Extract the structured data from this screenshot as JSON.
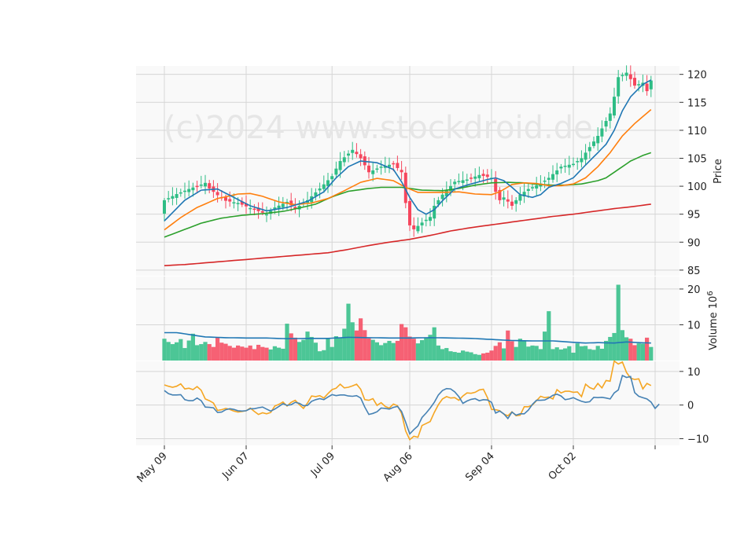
{
  "chart_data": {
    "type": "candlestick",
    "watermark": "(c)2024 www.stockdroid.de",
    "x_ticks": [
      "May 09",
      "Jun 07",
      "Jul 09",
      "Aug 06",
      "Sep 04",
      "Oct 02"
    ],
    "x_tick_index": [
      0,
      20,
      41,
      60,
      80,
      100
    ],
    "n_days": 120,
    "colors": {
      "up": "#2ebd85",
      "down": "#f6465d",
      "ma_fast": "#1f77b4",
      "ma_mid": "#ff7f0e",
      "ma_slow": "#2ca02c",
      "ma_long": "#d62728",
      "volume_avg": "#1f77b4",
      "osc_a": "#f5a623",
      "osc_b": "#4682b4"
    },
    "price_panel": {
      "ylabel": "Price",
      "ylim": [
        84,
        121.5
      ],
      "yticks": [
        85,
        90,
        95,
        100,
        105,
        110,
        115,
        120
      ],
      "close_anchors": [
        [
          0,
          97.5
        ],
        [
          3,
          98.6
        ],
        [
          6,
          99.5
        ],
        [
          9,
          100.3
        ],
        [
          10,
          100.6
        ],
        [
          11,
          99.6
        ],
        [
          13,
          98.4
        ],
        [
          15,
          97.4
        ],
        [
          18,
          97.0
        ],
        [
          20,
          96.4
        ],
        [
          22,
          95.8
        ],
        [
          25,
          95.0
        ],
        [
          27,
          96.2
        ],
        [
          30,
          97.2
        ],
        [
          32,
          96.0
        ],
        [
          35,
          97.5
        ],
        [
          38,
          99.6
        ],
        [
          41,
          101.8
        ],
        [
          43,
          104.5
        ],
        [
          46,
          106.5
        ],
        [
          48,
          105.0
        ],
        [
          50,
          102.5
        ],
        [
          53,
          103.5
        ],
        [
          56,
          104.0
        ],
        [
          58,
          102.5
        ],
        [
          59,
          97.0
        ],
        [
          60,
          93.0
        ],
        [
          61,
          92.3
        ],
        [
          63,
          93.5
        ],
        [
          65,
          94.5
        ],
        [
          66,
          96.5
        ],
        [
          68,
          98.5
        ],
        [
          71,
          100.8
        ],
        [
          74,
          101.2
        ],
        [
          77,
          102.0
        ],
        [
          80,
          101.5
        ],
        [
          81,
          99.0
        ],
        [
          82,
          97.5
        ],
        [
          83,
          98.0
        ],
        [
          85,
          96.5
        ],
        [
          87,
          98.5
        ],
        [
          89,
          99.5
        ],
        [
          92,
          100.5
        ],
        [
          94,
          101.5
        ],
        [
          97,
          103.5
        ],
        [
          100,
          104.0
        ],
        [
          102,
          105.0
        ],
        [
          104,
          107.0
        ],
        [
          106,
          109.0
        ],
        [
          109,
          113.0
        ],
        [
          110,
          116.0
        ],
        [
          111,
          119.5
        ],
        [
          113,
          120.3
        ],
        [
          115,
          118.0
        ],
        [
          117,
          118.5
        ],
        [
          118,
          117.0
        ],
        [
          119,
          118.9
        ]
      ],
      "ma_fast_anchors": [
        [
          0,
          93.8
        ],
        [
          5,
          97.5
        ],
        [
          9,
          99.3
        ],
        [
          13,
          99.5
        ],
        [
          17,
          98.0
        ],
        [
          21,
          96.5
        ],
        [
          25,
          95.6
        ],
        [
          30,
          96.2
        ],
        [
          35,
          97.3
        ],
        [
          39,
          99.0
        ],
        [
          42,
          101.5
        ],
        [
          45,
          103.5
        ],
        [
          48,
          104.5
        ],
        [
          52,
          104.2
        ],
        [
          56,
          103.0
        ],
        [
          58,
          100.8
        ],
        [
          60,
          98.0
        ],
        [
          62,
          95.8
        ],
        [
          64,
          95.0
        ],
        [
          66,
          95.8
        ],
        [
          68,
          97.4
        ],
        [
          71,
          99.5
        ],
        [
          74,
          100.2
        ],
        [
          77,
          100.8
        ],
        [
          79,
          101.2
        ],
        [
          81,
          101.5
        ],
        [
          83,
          101.0
        ],
        [
          85,
          99.8
        ],
        [
          87,
          98.5
        ],
        [
          90,
          98.0
        ],
        [
          92,
          98.5
        ],
        [
          94,
          99.8
        ],
        [
          97,
          100.5
        ],
        [
          100,
          101.5
        ],
        [
          103,
          103.8
        ],
        [
          106,
          106.0
        ],
        [
          108,
          107.5
        ],
        [
          110,
          110.0
        ],
        [
          112,
          113.5
        ],
        [
          114,
          116.0
        ],
        [
          117,
          118.2
        ],
        [
          119,
          119.0
        ]
      ],
      "ma_mid_anchors": [
        [
          0,
          92.2
        ],
        [
          4,
          94.4
        ],
        [
          8,
          96.2
        ],
        [
          13,
          97.8
        ],
        [
          18,
          98.6
        ],
        [
          21,
          98.7
        ],
        [
          24,
          98.2
        ],
        [
          28,
          97.2
        ],
        [
          32,
          96.7
        ],
        [
          36,
          97.0
        ],
        [
          40,
          97.8
        ],
        [
          44,
          99.2
        ],
        [
          48,
          100.7
        ],
        [
          52,
          101.4
        ],
        [
          56,
          101.0
        ],
        [
          59,
          99.8
        ],
        [
          62,
          98.9
        ],
        [
          66,
          98.9
        ],
        [
          68,
          98.9
        ],
        [
          72,
          99.0
        ],
        [
          76,
          98.6
        ],
        [
          80,
          98.5
        ],
        [
          82,
          99.0
        ],
        [
          85,
          100.3
        ],
        [
          88,
          100.6
        ],
        [
          91,
          100.5
        ],
        [
          94,
          100.1
        ],
        [
          97,
          100.1
        ],
        [
          100,
          100.4
        ],
        [
          103,
          101.5
        ],
        [
          106,
          103.5
        ],
        [
          109,
          106.0
        ],
        [
          112,
          109.0
        ],
        [
          115,
          111.2
        ],
        [
          119,
          113.7
        ]
      ],
      "ma_slow_anchors": [
        [
          0,
          90.9
        ],
        [
          4,
          92.0
        ],
        [
          9,
          93.4
        ],
        [
          14,
          94.3
        ],
        [
          19,
          94.8
        ],
        [
          24,
          95.1
        ],
        [
          29,
          95.5
        ],
        [
          33,
          96.1
        ],
        [
          37,
          96.8
        ],
        [
          41,
          98.1
        ],
        [
          45,
          99.1
        ],
        [
          50,
          99.6
        ],
        [
          53,
          99.8
        ],
        [
          58,
          99.8
        ],
        [
          63,
          99.3
        ],
        [
          68,
          99.2
        ],
        [
          72,
          99.6
        ],
        [
          76,
          100.2
        ],
        [
          80,
          100.6
        ],
        [
          84,
          100.7
        ],
        [
          88,
          100.6
        ],
        [
          92,
          100.3
        ],
        [
          95,
          100.2
        ],
        [
          98,
          100.2
        ],
        [
          102,
          100.4
        ],
        [
          106,
          101.0
        ],
        [
          108,
          101.5
        ],
        [
          111,
          103.0
        ],
        [
          114,
          104.5
        ],
        [
          117,
          105.5
        ],
        [
          119,
          106.0
        ]
      ],
      "ma_long_anchors": [
        [
          0,
          85.8
        ],
        [
          5,
          86.0
        ],
        [
          10,
          86.3
        ],
        [
          15,
          86.6
        ],
        [
          20,
          86.9
        ],
        [
          25,
          87.2
        ],
        [
          30,
          87.5
        ],
        [
          35,
          87.8
        ],
        [
          40,
          88.1
        ],
        [
          45,
          88.7
        ],
        [
          50,
          89.4
        ],
        [
          55,
          90.0
        ],
        [
          60,
          90.5
        ],
        [
          65,
          91.2
        ],
        [
          70,
          92.0
        ],
        [
          75,
          92.6
        ],
        [
          80,
          93.1
        ],
        [
          85,
          93.6
        ],
        [
          90,
          94.1
        ],
        [
          95,
          94.6
        ],
        [
          100,
          95.0
        ],
        [
          105,
          95.5
        ],
        [
          110,
          96.0
        ],
        [
          115,
          96.4
        ],
        [
          119,
          96.8
        ]
      ]
    },
    "volume_panel": {
      "ylabel": "Volume  10",
      "ylabel_exp": "6",
      "ylim": [
        0,
        23.5
      ],
      "yticks": [
        10,
        20
      ],
      "values": [
        6.1,
        5.2,
        4.6,
        5.1,
        6.0,
        3.5,
        5.6,
        7.5,
        4.3,
        4.6,
        5.2,
        4.6,
        3.8,
        6.4,
        5.0,
        4.7,
        4.1,
        3.6,
        4.2,
        3.9,
        3.6,
        4.2,
        3.2,
        4.4,
        3.8,
        3.6,
        3.1,
        4.0,
        3.6,
        3.3,
        10.3,
        7.6,
        6.4,
        5.2,
        5.8,
        8.1,
        6.6,
        5.0,
        2.6,
        2.9,
        6.1,
        3.8,
        6.8,
        6.4,
        8.9,
        15.9,
        10.7,
        8.4,
        11.8,
        8.5,
        6.2,
        5.8,
        5.1,
        4.3,
        4.9,
        5.5,
        4.9,
        5.5,
        10.2,
        9.3,
        6.7,
        6.1,
        4.8,
        5.7,
        6.5,
        7.2,
        9.3,
        4.2,
        3.2,
        3.5,
        2.6,
        2.4,
        2.2,
        2.8,
        2.5,
        2.3,
        1.8,
        1.6,
        2.0,
        2.2,
        2.8,
        4.1,
        5.1,
        3.4,
        8.4,
        5.4,
        3.8,
        6.1,
        5.5,
        3.9,
        4.2,
        4.1,
        3.2,
        8.1,
        13.8,
        3.2,
        3.7,
        3.1,
        3.4,
        4.0,
        2.2,
        4.8,
        4.0,
        4.1,
        3.2,
        3.0,
        4.1,
        3.3,
        5.5,
        6.6,
        7.7,
        21.2,
        8.5,
        6.5,
        6.1,
        4.3,
        4.8,
        4.7,
        6.4,
        3.8
      ]
    },
    "volume_avg_anchors": [
      [
        0,
        7.8
      ],
      [
        3,
        7.8
      ],
      [
        6,
        7.3
      ],
      [
        10,
        6.6
      ],
      [
        15,
        6.4
      ],
      [
        20,
        6.3
      ],
      [
        25,
        6.3
      ],
      [
        30,
        6.1
      ],
      [
        35,
        6.2
      ],
      [
        40,
        6.2
      ],
      [
        45,
        6.5
      ],
      [
        50,
        6.4
      ],
      [
        55,
        6.3
      ],
      [
        60,
        6.3
      ],
      [
        65,
        6.4
      ],
      [
        70,
        6.3
      ],
      [
        75,
        6.2
      ],
      [
        80,
        5.9
      ],
      [
        85,
        5.6
      ],
      [
        90,
        5.5
      ],
      [
        95,
        5.5
      ],
      [
        100,
        5.1
      ],
      [
        103,
        4.9
      ],
      [
        106,
        5.0
      ],
      [
        110,
        4.9
      ],
      [
        113,
        5.2
      ],
      [
        116,
        5.0
      ],
      [
        119,
        4.9
      ]
    ],
    "oscillator_panel": {
      "ylim": [
        -12,
        13
      ],
      "yticks": [
        -10,
        0,
        10
      ],
      "line_a": [
        6.0,
        5.6,
        5.3,
        5.6,
        6.3,
        4.8,
        5.0,
        4.6,
        5.5,
        4.4,
        1.8,
        1.3,
        0.6,
        -1.6,
        -1.4,
        -1.0,
        -1.3,
        -1.8,
        -2.1,
        -1.9,
        -1.7,
        -0.9,
        -1.9,
        -2.8,
        -2.3,
        -2.6,
        -2.2,
        -0.3,
        0.2,
        0.9,
        -0.3,
        0.8,
        1.4,
        0.1,
        -1.0,
        0.6,
        2.7,
        2.5,
        2.8,
        2.1,
        3.4,
        4.6,
        5.0,
        6.2,
        5.1,
        5.3,
        5.7,
        6.2,
        4.7,
        1.6,
        1.4,
        1.9,
        -0.1,
        0.7,
        -0.4,
        -0.9,
        0.3,
        -0.2,
        -2.5,
        -7.7,
        -10.3,
        -9.3,
        -9.6,
        -6.1,
        -5.5,
        -4.9,
        -2.2,
        0.1,
        1.8,
        2.5,
        2.1,
        2.2,
        1.4,
        2.7,
        3.6,
        3.5,
        3.8,
        4.5,
        4.7,
        2.2,
        -1.3,
        -1.4,
        -1.7,
        -2.7,
        -3.2,
        -2.0,
        -3.2,
        -3.0,
        -0.5,
        -0.5,
        0.0,
        1.3,
        2.6,
        2.2,
        2.4,
        1.8,
        4.6,
        3.6,
        4.1,
        4.1,
        3.8,
        3.9,
        2.5,
        6.2,
        5.2,
        4.7,
        6.4,
        5.1,
        7.3,
        7.1,
        13.1,
        12.2,
        12.8,
        9.7,
        8.0,
        7.6,
        7.8,
        4.8,
        6.4,
        5.8
      ],
      "line_b": [
        4.3,
        3.4,
        3.0,
        3.0,
        3.1,
        1.6,
        1.3,
        1.3,
        2.1,
        1.3,
        -0.6,
        -0.7,
        -0.8,
        -2.2,
        -2.1,
        -1.4,
        -1.1,
        -1.3,
        -1.7,
        -1.8,
        -1.7,
        -1.1,
        -1.1,
        -0.8,
        -0.6,
        -1.2,
        -1.8,
        -1.2,
        -0.4,
        0.4,
        -0.1,
        0.1,
        0.8,
        0.5,
        -0.2,
        -0.1,
        1.1,
        1.6,
        1.9,
        1.6,
        2.4,
        3.1,
        2.8,
        3.0,
        3.0,
        2.7,
        2.6,
        2.8,
        2.1,
        -0.6,
        -2.8,
        -2.5,
        -2.0,
        -0.9,
        -1.0,
        -1.2,
        -0.7,
        -0.4,
        -1.9,
        -5.1,
        -8.6,
        -7.3,
        -6.2,
        -3.7,
        -2.4,
        -0.9,
        0.8,
        3.0,
        4.3,
        4.9,
        4.8,
        3.9,
        2.5,
        0.5,
        1.2,
        1.7,
        1.9,
        1.3,
        1.6,
        1.5,
        0.8,
        -2.4,
        -1.8,
        -2.6,
        -4.0,
        -2.1,
        -3.0,
        -2.6,
        -2.6,
        -1.5,
        0.2,
        1.4,
        1.4,
        1.5,
        2.1,
        2.9,
        3.2,
        2.7,
        1.6,
        1.8,
        2.2,
        1.6,
        1.1,
        0.8,
        1.0,
        2.3,
        2.2,
        2.3,
        2.1,
        1.8,
        3.6,
        4.5,
        8.8,
        8.2,
        8.5,
        3.7,
        2.6,
        2.2,
        1.8,
        0.9,
        -1.0,
        0.3
      ]
    }
  }
}
